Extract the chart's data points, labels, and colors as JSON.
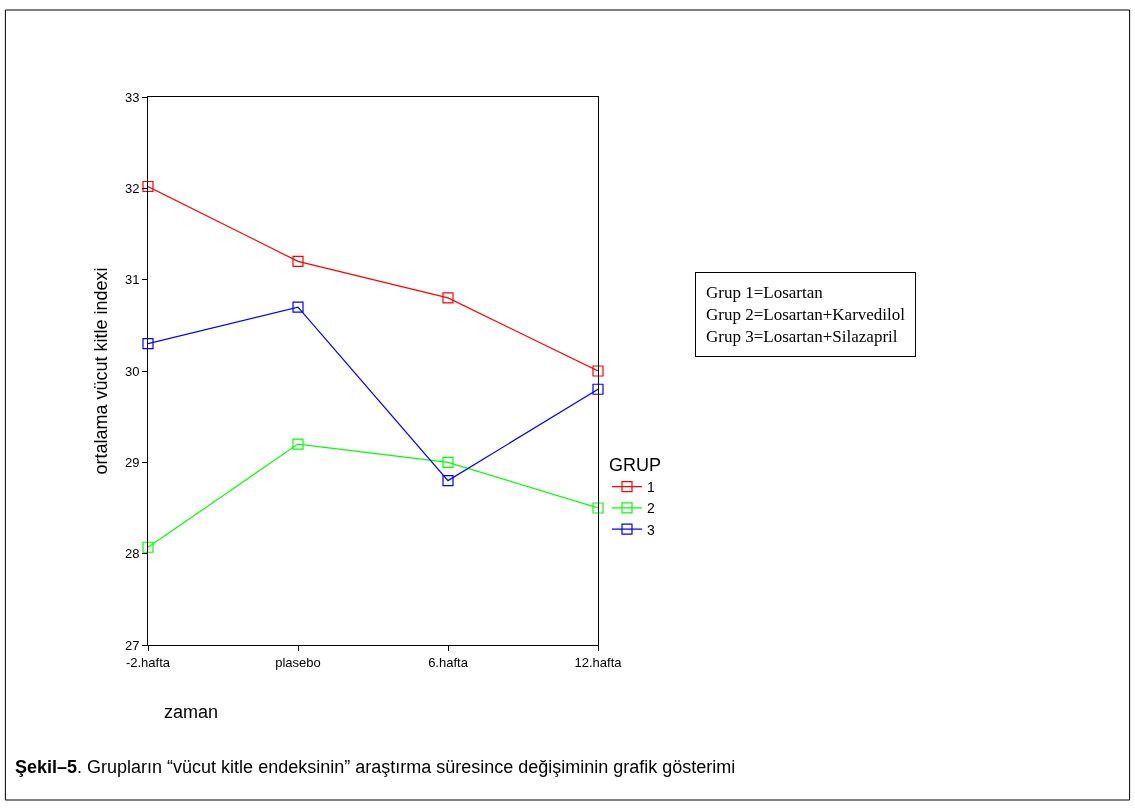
{
  "chart_data": {
    "type": "line",
    "categories": [
      "-2.hafta",
      "plasebo",
      "6.hafta",
      "12.hafta"
    ],
    "xlabel": "zaman",
    "ylabel": "ortalama vücut kitle indexi",
    "legend_title": "GRUP",
    "series": [
      {
        "name": "1",
        "color": "#ff0000",
        "values": [
          32.02,
          31.2,
          30.8,
          30.0
        ]
      },
      {
        "name": "2",
        "color": "#00ff00",
        "values": [
          28.07,
          29.2,
          29.0,
          28.5
        ]
      },
      {
        "name": "3",
        "color": "#0000ff",
        "values": [
          30.3,
          30.7,
          28.8,
          29.8
        ]
      }
    ],
    "ylim": [
      27,
      33
    ],
    "yticks": [
      27,
      28,
      29,
      30,
      31,
      32,
      33
    ],
    "marker": "square",
    "line_style": "solid",
    "legend": "right",
    "annotations": [
      "Grup 1=Losartan\nGrup 2=Losartan+Karvedilol\nGrup 3=Losartan+Silazapril",
      "Şekil–5. Grupların “vücut kitle endeksinin” araştırma süresince değişiminin grafik gösterimi"
    ]
  }
}
